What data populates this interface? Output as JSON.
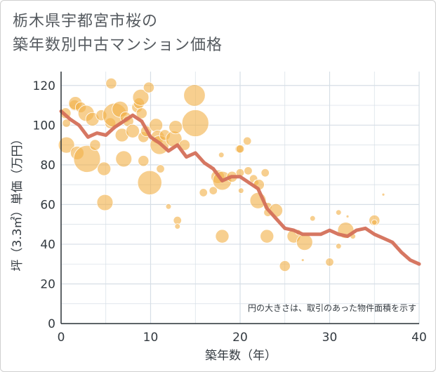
{
  "chart_data": {
    "type": "scatter",
    "title_lines": [
      "栃木県宇都宮市桜の",
      "築年数別中古マンション価格"
    ],
    "xlabel": "築年数（年）",
    "ylabel": "坪（3.3㎡）単価（万円）",
    "xlim": [
      0,
      40
    ],
    "ylim": [
      0,
      127
    ],
    "xticks": [
      0,
      10,
      20,
      30,
      40
    ],
    "yticks": [
      0,
      20,
      40,
      60,
      80,
      100,
      120
    ],
    "grid": true,
    "note": "円の大きさは、取引のあった物件面積を示す",
    "colors": {
      "bubble": "#f2b24a",
      "line": "#d4705a",
      "grid": "#d6dee6",
      "text": "#333a40"
    },
    "bubbles": [
      {
        "x": 0.5,
        "y": 106,
        "s": 3
      },
      {
        "x": 0.6,
        "y": 101,
        "s": 2
      },
      {
        "x": 0.6,
        "y": 90,
        "s": 5
      },
      {
        "x": 1.5,
        "y": 110,
        "s": 3
      },
      {
        "x": 1.6,
        "y": 111,
        "s": 4
      },
      {
        "x": 1.8,
        "y": 86,
        "s": 4
      },
      {
        "x": 2.2,
        "y": 109,
        "s": 3
      },
      {
        "x": 2.8,
        "y": 106,
        "s": 5
      },
      {
        "x": 2.9,
        "y": 83,
        "s": 9
      },
      {
        "x": 3.5,
        "y": 103,
        "s": 4
      },
      {
        "x": 3.8,
        "y": 90,
        "s": 3
      },
      {
        "x": 4.5,
        "y": 105,
        "s": 3
      },
      {
        "x": 4.8,
        "y": 78,
        "s": 4
      },
      {
        "x": 4.9,
        "y": 61,
        "s": 5
      },
      {
        "x": 5.5,
        "y": 101,
        "s": 3
      },
      {
        "x": 5.6,
        "y": 121,
        "s": 3
      },
      {
        "x": 6,
        "y": 105,
        "s": 8
      },
      {
        "x": 6.6,
        "y": 108,
        "s": 5
      },
      {
        "x": 6.8,
        "y": 95,
        "s": 4
      },
      {
        "x": 7,
        "y": 83,
        "s": 5
      },
      {
        "x": 7.2,
        "y": 104,
        "s": 3
      },
      {
        "x": 7.5,
        "y": 102,
        "s": 3
      },
      {
        "x": 8,
        "y": 97,
        "s": 4
      },
      {
        "x": 8.5,
        "y": 109,
        "s": 3
      },
      {
        "x": 8.7,
        "y": 111,
        "s": 3
      },
      {
        "x": 8.9,
        "y": 114,
        "s": 5
      },
      {
        "x": 9.0,
        "y": 106,
        "s": 3
      },
      {
        "x": 9.2,
        "y": 94,
        "s": 3
      },
      {
        "x": 9.2,
        "y": 82,
        "s": 3
      },
      {
        "x": 9.5,
        "y": 97,
        "s": 3
      },
      {
        "x": 9.8,
        "y": 119,
        "s": 3
      },
      {
        "x": 9.9,
        "y": 71,
        "s": 8
      },
      {
        "x": 10.6,
        "y": 100,
        "s": 4
      },
      {
        "x": 10.8,
        "y": 94,
        "s": 4
      },
      {
        "x": 11,
        "y": 90,
        "s": 6
      },
      {
        "x": 11.1,
        "y": 78,
        "s": 2
      },
      {
        "x": 11.6,
        "y": 95,
        "s": 3
      },
      {
        "x": 12,
        "y": 59,
        "s": 1
      },
      {
        "x": 12.6,
        "y": 93,
        "s": 5
      },
      {
        "x": 12.8,
        "y": 99,
        "s": 4
      },
      {
        "x": 13,
        "y": 52,
        "s": 2
      },
      {
        "x": 13,
        "y": 49,
        "s": 1
      },
      {
        "x": 13.8,
        "y": 90,
        "s": 3
      },
      {
        "x": 14.9,
        "y": 115,
        "s": 7
      },
      {
        "x": 15,
        "y": 101,
        "s": 9
      },
      {
        "x": 15.9,
        "y": 66,
        "s": 2
      },
      {
        "x": 17,
        "y": 67,
        "s": 2
      },
      {
        "x": 17.5,
        "y": 74,
        "s": 4
      },
      {
        "x": 17.9,
        "y": 85,
        "s": 1
      },
      {
        "x": 18,
        "y": 72,
        "s": 6
      },
      {
        "x": 18,
        "y": 44,
        "s": 4
      },
      {
        "x": 19.1,
        "y": 74,
        "s": 3
      },
      {
        "x": 19.9,
        "y": 88,
        "s": 2
      },
      {
        "x": 20,
        "y": 88,
        "s": 2
      },
      {
        "x": 20,
        "y": 76,
        "s": 2
      },
      {
        "x": 20.1,
        "y": 67,
        "s": 1
      },
      {
        "x": 20.8,
        "y": 92,
        "s": 2
      },
      {
        "x": 20.9,
        "y": 77,
        "s": 2
      },
      {
        "x": 21.5,
        "y": 73,
        "s": 2
      },
      {
        "x": 21.8,
        "y": 71,
        "s": 1
      },
      {
        "x": 22,
        "y": 62,
        "s": 5
      },
      {
        "x": 22.1,
        "y": 70,
        "s": 3
      },
      {
        "x": 22.8,
        "y": 76,
        "s": 2
      },
      {
        "x": 23.1,
        "y": 59,
        "s": 2
      },
      {
        "x": 23.1,
        "y": 56,
        "s": 2
      },
      {
        "x": 23,
        "y": 44,
        "s": 4
      },
      {
        "x": 24,
        "y": 57,
        "s": 4
      },
      {
        "x": 25,
        "y": 29,
        "s": 3
      },
      {
        "x": 26,
        "y": 44,
        "s": 4
      },
      {
        "x": 26.5,
        "y": 46,
        "s": 1
      },
      {
        "x": 27,
        "y": 32,
        "s": 0
      },
      {
        "x": 27.2,
        "y": 41,
        "s": 5
      },
      {
        "x": 28.1,
        "y": 53,
        "s": 1
      },
      {
        "x": 30,
        "y": 31,
        "s": 2
      },
      {
        "x": 31,
        "y": 56,
        "s": 1
      },
      {
        "x": 31,
        "y": 39,
        "s": 1
      },
      {
        "x": 31.8,
        "y": 47,
        "s": 5
      },
      {
        "x": 32,
        "y": 54,
        "s": 0
      },
      {
        "x": 32.6,
        "y": 44,
        "s": 1
      },
      {
        "x": 35,
        "y": 52,
        "s": 3
      },
      {
        "x": 35,
        "y": 51,
        "s": 1
      },
      {
        "x": 36,
        "y": 65,
        "s": 0
      }
    ],
    "series": [
      {
        "x": [
          0,
          1,
          2,
          3,
          4,
          5,
          6,
          7,
          8,
          9,
          10,
          11,
          12,
          13,
          14,
          15,
          16,
          17,
          18,
          19,
          20,
          21,
          22,
          23,
          24,
          25,
          26,
          27,
          28,
          29,
          30,
          31,
          32,
          33,
          34,
          35,
          36,
          37,
          38,
          39,
          40
        ],
        "values": [
          107,
          103,
          100,
          94,
          96,
          95,
          99,
          102,
          105,
          102,
          94,
          91,
          87,
          90,
          84,
          86,
          81,
          78,
          72,
          74,
          74,
          71,
          68,
          58,
          53,
          48,
          47,
          45,
          45,
          45,
          47,
          45,
          44,
          47,
          48,
          45,
          43,
          41,
          36,
          32,
          30
        ]
      }
    ]
  }
}
